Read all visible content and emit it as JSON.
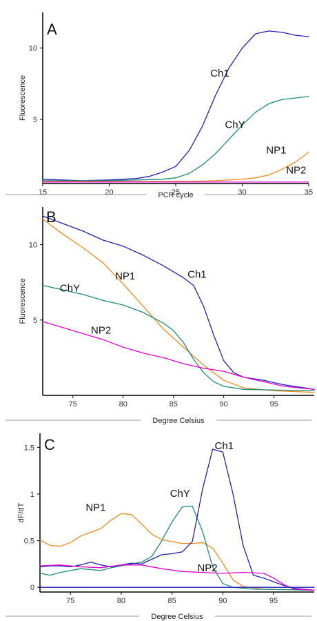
{
  "colors": {
    "Ch1": "#1f1fb5",
    "ChY": "#1b8a7a",
    "NP1": "#f08a1c",
    "NP2": "#e000d0",
    "axis": "#000000"
  },
  "chart_data": [
    {
      "panel": "A",
      "type": "line",
      "xlabel": "PCR  cycle",
      "ylabel": "Fluorescence",
      "xlim": [
        15,
        35
      ],
      "ylim": [
        0.5,
        12.5
      ],
      "xticks": [
        15,
        20,
        25,
        30,
        35
      ],
      "yticks": [
        5,
        10
      ],
      "series": [
        {
          "name": "Ch1",
          "points": [
            [
              15,
              0.8
            ],
            [
              18,
              0.7
            ],
            [
              20,
              0.75
            ],
            [
              22,
              0.85
            ],
            [
              23,
              1.0
            ],
            [
              24,
              1.3
            ],
            [
              25,
              1.7
            ],
            [
              26,
              2.8
            ],
            [
              27,
              4.5
            ],
            [
              28,
              6.7
            ],
            [
              29,
              8.6
            ],
            [
              30,
              10.0
            ],
            [
              31,
              11.0
            ],
            [
              32,
              11.2
            ],
            [
              33,
              11.1
            ],
            [
              34,
              10.9
            ],
            [
              35,
              10.8
            ]
          ]
        },
        {
          "name": "ChY",
          "points": [
            [
              15,
              0.7
            ],
            [
              20,
              0.7
            ],
            [
              24,
              0.8
            ],
            [
              25,
              0.9
            ],
            [
              26,
              1.2
            ],
            [
              27,
              1.8
            ],
            [
              28,
              2.6
            ],
            [
              29,
              3.6
            ],
            [
              30,
              4.6
            ],
            [
              31,
              5.5
            ],
            [
              32,
              6.1
            ],
            [
              33,
              6.4
            ],
            [
              34,
              6.5
            ],
            [
              35,
              6.6
            ]
          ]
        },
        {
          "name": "NP1",
          "points": [
            [
              15,
              0.65
            ],
            [
              26,
              0.65
            ],
            [
              28,
              0.7
            ],
            [
              30,
              0.8
            ],
            [
              31,
              0.9
            ],
            [
              32,
              1.1
            ],
            [
              33,
              1.5
            ],
            [
              34,
              2.0
            ],
            [
              35,
              2.7
            ]
          ]
        },
        {
          "name": "NP2",
          "points": [
            [
              15,
              0.6
            ],
            [
              20,
              0.6
            ],
            [
              25,
              0.6
            ],
            [
              30,
              0.6
            ],
            [
              35,
              0.6
            ]
          ]
        }
      ],
      "labels": [
        {
          "text": "Ch1",
          "x": 27.6,
          "y": 8.0
        },
        {
          "text": "ChY",
          "x": 28.7,
          "y": 4.4
        },
        {
          "text": "NP1",
          "x": 31.8,
          "y": 2.6
        },
        {
          "text": "NP2",
          "x": 33.3,
          "y": 1.2
        }
      ]
    },
    {
      "panel": "B",
      "type": "line",
      "xlabel": "Degree Celsius",
      "ylabel": "Fluorescence",
      "xlim": [
        72,
        99
      ],
      "ylim": [
        0,
        12.5
      ],
      "xticks": [
        75,
        80,
        85,
        90,
        95
      ],
      "yticks": [
        5,
        10
      ],
      "series": [
        {
          "name": "Ch1",
          "points": [
            [
              72,
              11.9
            ],
            [
              74,
              11.4
            ],
            [
              76,
              10.9
            ],
            [
              78,
              10.3
            ],
            [
              80,
              9.9
            ],
            [
              82,
              9.3
            ],
            [
              84,
              8.6
            ],
            [
              86,
              7.8
            ],
            [
              87,
              7.3
            ],
            [
              88,
              5.9
            ],
            [
              89,
              4.0
            ],
            [
              90,
              2.3
            ],
            [
              91,
              1.5
            ],
            [
              92,
              1.2
            ],
            [
              94,
              1.0
            ],
            [
              96,
              0.7
            ],
            [
              99,
              0.4
            ]
          ]
        },
        {
          "name": "NP1",
          "points": [
            [
              72,
              11.7
            ],
            [
              74,
              10.7
            ],
            [
              76,
              9.8
            ],
            [
              78,
              8.8
            ],
            [
              80,
              7.4
            ],
            [
              82,
              5.9
            ],
            [
              84,
              4.4
            ],
            [
              86,
              3.2
            ],
            [
              88,
              2.0
            ],
            [
              90,
              1.0
            ],
            [
              92,
              0.5
            ],
            [
              95,
              0.3
            ],
            [
              99,
              0.2
            ]
          ]
        },
        {
          "name": "ChY",
          "points": [
            [
              72,
              7.3
            ],
            [
              74,
              7.0
            ],
            [
              76,
              6.7
            ],
            [
              78,
              6.3
            ],
            [
              80,
              6.0
            ],
            [
              82,
              5.5
            ],
            [
              84,
              4.8
            ],
            [
              85,
              4.3
            ],
            [
              86,
              3.5
            ],
            [
              87,
              2.4
            ],
            [
              88,
              1.5
            ],
            [
              89,
              0.9
            ],
            [
              90,
              0.6
            ],
            [
              92,
              0.4
            ],
            [
              99,
              0.3
            ]
          ]
        },
        {
          "name": "NP2",
          "points": [
            [
              72,
              4.9
            ],
            [
              74,
              4.5
            ],
            [
              76,
              4.1
            ],
            [
              78,
              3.7
            ],
            [
              80,
              3.2
            ],
            [
              82,
              2.8
            ],
            [
              84,
              2.5
            ],
            [
              86,
              2.1
            ],
            [
              88,
              1.8
            ],
            [
              90,
              1.6
            ],
            [
              92,
              1.2
            ],
            [
              94,
              0.9
            ],
            [
              96,
              0.6
            ],
            [
              99,
              0.4
            ]
          ]
        }
      ],
      "labels": [
        {
          "text": "Ch1",
          "x": 86.4,
          "y": 7.8
        },
        {
          "text": "NP1",
          "x": 79.2,
          "y": 7.7
        },
        {
          "text": "ChY",
          "x": 73.7,
          "y": 6.9
        },
        {
          "text": "NP2",
          "x": 76.8,
          "y": 4.1
        }
      ]
    },
    {
      "panel": "C",
      "type": "line",
      "xlabel": "Degree Celsius",
      "ylabel": "dF/dT",
      "xlim": [
        72,
        99
      ],
      "ylim": [
        -0.05,
        1.65
      ],
      "xticks": [
        75,
        80,
        85,
        90,
        95
      ],
      "yticks": [
        0,
        0.5,
        1,
        1.5
      ],
      "ytick_labels": [
        "0",
        "0.5",
        "1",
        "1.5"
      ],
      "series": [
        {
          "name": "NP1",
          "points": [
            [
              72,
              0.51
            ],
            [
              73,
              0.45
            ],
            [
              74,
              0.44
            ],
            [
              75,
              0.48
            ],
            [
              76,
              0.55
            ],
            [
              77,
              0.59
            ],
            [
              78,
              0.63
            ],
            [
              79,
              0.72
            ],
            [
              80,
              0.79
            ],
            [
              81,
              0.78
            ],
            [
              82,
              0.68
            ],
            [
              83,
              0.57
            ],
            [
              84,
              0.51
            ],
            [
              85,
              0.49
            ],
            [
              86,
              0.47
            ],
            [
              87,
              0.47
            ],
            [
              88,
              0.48
            ],
            [
              89,
              0.42
            ],
            [
              90,
              0.26
            ],
            [
              91,
              0.08
            ],
            [
              92,
              0.01
            ],
            [
              94,
              -0.02
            ],
            [
              99,
              -0.03
            ]
          ]
        },
        {
          "name": "ChY",
          "points": [
            [
              72,
              0.15
            ],
            [
              73,
              0.13
            ],
            [
              74,
              0.16
            ],
            [
              75,
              0.18
            ],
            [
              76,
              0.2
            ],
            [
              77,
              0.19
            ],
            [
              78,
              0.18
            ],
            [
              79,
              0.21
            ],
            [
              80,
              0.23
            ],
            [
              81,
              0.25
            ],
            [
              82,
              0.27
            ],
            [
              83,
              0.33
            ],
            [
              84,
              0.5
            ],
            [
              85,
              0.7
            ],
            [
              86,
              0.86
            ],
            [
              87,
              0.87
            ],
            [
              88,
              0.6
            ],
            [
              89,
              0.22
            ],
            [
              90,
              0.04
            ],
            [
              91,
              0.0
            ],
            [
              93,
              -0.02
            ],
            [
              99,
              -0.03
            ]
          ]
        },
        {
          "name": "Ch1",
          "points": [
            [
              72,
              0.22
            ],
            [
              73,
              0.23
            ],
            [
              74,
              0.23
            ],
            [
              75,
              0.22
            ],
            [
              76,
              0.24
            ],
            [
              77,
              0.27
            ],
            [
              78,
              0.24
            ],
            [
              79,
              0.22
            ],
            [
              80,
              0.24
            ],
            [
              81,
              0.26
            ],
            [
              82,
              0.25
            ],
            [
              83,
              0.3
            ],
            [
              84,
              0.35
            ],
            [
              85,
              0.36
            ],
            [
              86,
              0.38
            ],
            [
              87,
              0.49
            ],
            [
              88,
              1.05
            ],
            [
              89,
              1.48
            ],
            [
              90,
              1.45
            ],
            [
              91,
              1.0
            ],
            [
              92,
              0.45
            ],
            [
              93,
              0.13
            ],
            [
              94,
              0.1
            ],
            [
              95,
              0.06
            ],
            [
              96,
              0.02
            ],
            [
              97,
              -0.01
            ],
            [
              99,
              -0.03
            ]
          ]
        },
        {
          "name": "NP2",
          "points": [
            [
              72,
              0.23
            ],
            [
              74,
              0.24
            ],
            [
              76,
              0.22
            ],
            [
              78,
              0.21
            ],
            [
              80,
              0.24
            ],
            [
              82,
              0.24
            ],
            [
              84,
              0.2
            ],
            [
              86,
              0.17
            ],
            [
              88,
              0.16
            ],
            [
              90,
              0.15
            ],
            [
              92,
              0.16
            ],
            [
              94,
              0.15
            ],
            [
              95,
              0.1
            ],
            [
              96,
              0.03
            ],
            [
              97,
              -0.02
            ],
            [
              99,
              -0.03
            ]
          ]
        },
        {
          "name": "Baseline",
          "points": [
            [
              72,
              0.0
            ],
            [
              99,
              0.0
            ]
          ]
        }
      ],
      "labels": [
        {
          "text": "Ch1",
          "x": 89.2,
          "y": 1.48
        },
        {
          "text": "ChY",
          "x": 84.8,
          "y": 0.97
        },
        {
          "text": "NP1",
          "x": 76.5,
          "y": 0.82
        },
        {
          "text": "NP2",
          "x": 87.5,
          "y": 0.17
        }
      ]
    }
  ]
}
